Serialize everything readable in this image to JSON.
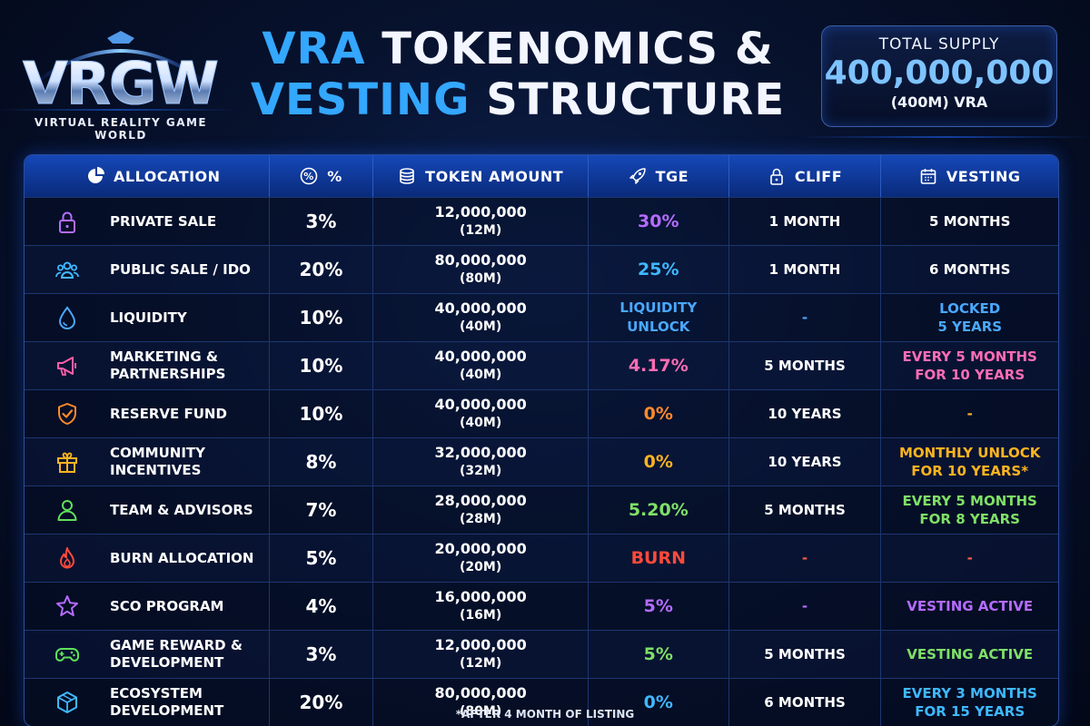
{
  "logo": {
    "mark": "VRGW",
    "tagline": "VIRTUAL REALITY GAME WORLD"
  },
  "title": {
    "line1_accent": "VRA",
    "line1_rest": "TOKENOMICS &",
    "line2_accent": "VESTING",
    "line2_rest": "STRUCTURE"
  },
  "supply": {
    "label": "TOTAL SUPPLY",
    "value": "400,000,000",
    "sub": "(400M) VRA"
  },
  "headers": {
    "allocation": "ALLOCATION",
    "percent": "%",
    "token_amount": "TOKEN AMOUNT",
    "tge": "TGE",
    "cliff": "CLIFF",
    "vesting": "VESTING"
  },
  "rows": [
    {
      "icon": "lock-icon",
      "color": "#b46cff",
      "name": [
        "PRIVATE SALE"
      ],
      "pct": "3%",
      "amount": "12,000,000",
      "amount_short": "(12M)",
      "tge": [
        "30%"
      ],
      "tge_color": "#b46cff",
      "cliff": "1 MONTH",
      "cliff_color": "#ffffff",
      "vesting": [
        "5 MONTHS"
      ],
      "vesting_color": "#ffffff"
    },
    {
      "icon": "users-icon",
      "color": "#3fb8ff",
      "name": [
        "PUBLIC SALE / IDO"
      ],
      "pct": "20%",
      "amount": "80,000,000",
      "amount_short": "(80M)",
      "tge": [
        "25%"
      ],
      "tge_color": "#3fb8ff",
      "cliff": "1 MONTH",
      "cliff_color": "#ffffff",
      "vesting": [
        "6 MONTHS"
      ],
      "vesting_color": "#ffffff"
    },
    {
      "icon": "droplet-icon",
      "color": "#4aa8ff",
      "name": [
        "LIQUIDITY"
      ],
      "pct": "10%",
      "amount": "40,000,000",
      "amount_short": "(40M)",
      "tge": [
        "LIQUIDITY",
        "UNLOCK"
      ],
      "tge_color": "#4aa8ff",
      "cliff": "-",
      "cliff_color": "#4aa8ff",
      "vesting": [
        "LOCKED",
        "5 YEARS"
      ],
      "vesting_color": "#4aa8ff"
    },
    {
      "icon": "megaphone-icon",
      "color": "#ff5fa8",
      "name": [
        "MARKETING &",
        "PARTNERSHIPS"
      ],
      "pct": "10%",
      "amount": "40,000,000",
      "amount_short": "(40M)",
      "tge": [
        "4.17%"
      ],
      "tge_color": "#ff6db5",
      "cliff": "5 MONTHS",
      "cliff_color": "#ffffff",
      "vesting": [
        "EVERY 5 MONTHS",
        "FOR 10 YEARS"
      ],
      "vesting_color": "#ff6db5"
    },
    {
      "icon": "shield-check-icon",
      "color": "#ff8a2a",
      "name": [
        "RESERVE FUND"
      ],
      "pct": "10%",
      "amount": "40,000,000",
      "amount_short": "(40M)",
      "tge": [
        "0%"
      ],
      "tge_color": "#ff8a2a",
      "cliff": "10 YEARS",
      "cliff_color": "#ffffff",
      "vesting": [
        "-"
      ],
      "vesting_color": "#ffb12a"
    },
    {
      "icon": "gift-icon",
      "color": "#ffb41f",
      "name": [
        "COMMUNITY",
        "INCENTIVES"
      ],
      "pct": "8%",
      "amount": "32,000,000",
      "amount_short": "(32M)",
      "tge": [
        "0%"
      ],
      "tge_color": "#ffb41f",
      "cliff": "10 YEARS",
      "cliff_color": "#ffffff",
      "vesting": [
        "MONTHLY UNLOCK",
        "FOR 10 YEARS*"
      ],
      "vesting_color": "#ffb41f"
    },
    {
      "icon": "person-icon",
      "color": "#5fe05a",
      "name": [
        "TEAM & ADVISORS"
      ],
      "pct": "7%",
      "amount": "28,000,000",
      "amount_short": "(28M)",
      "tge": [
        "5.20%"
      ],
      "tge_color": "#7fe066",
      "cliff": "5 MONTHS",
      "cliff_color": "#ffffff",
      "vesting": [
        "EVERY 5 MONTHS",
        "FOR 8 YEARS"
      ],
      "vesting_color": "#7fe066"
    },
    {
      "icon": "flame-icon",
      "color": "#ff4a3a",
      "name": [
        "BURN ALLOCATION"
      ],
      "pct": "5%",
      "amount": "20,000,000",
      "amount_short": "(20M)",
      "tge": [
        "BURN"
      ],
      "tge_color": "#ff4a3a",
      "cliff": "-",
      "cliff_color": "#ff5a4a",
      "vesting": [
        "-"
      ],
      "vesting_color": "#ff5a4a"
    },
    {
      "icon": "star-icon",
      "color": "#b46cff",
      "name": [
        "SCO PROGRAM"
      ],
      "pct": "4%",
      "amount": "16,000,000",
      "amount_short": "(16M)",
      "tge": [
        "5%"
      ],
      "tge_color": "#b46cff",
      "cliff": "-",
      "cliff_color": "#b46cff",
      "vesting": [
        "VESTING ACTIVE"
      ],
      "vesting_color": "#b46cff"
    },
    {
      "icon": "gamepad-icon",
      "color": "#5fe05a",
      "name": [
        "GAME REWARD &",
        "DEVELOPMENT"
      ],
      "pct": "3%",
      "amount": "12,000,000",
      "amount_short": "(12M)",
      "tge": [
        "5%"
      ],
      "tge_color": "#7fe066",
      "cliff": "5 MONTHS",
      "cliff_color": "#ffffff",
      "vesting": [
        "VESTING ACTIVE"
      ],
      "vesting_color": "#7fe066"
    },
    {
      "icon": "cube-icon",
      "color": "#3fb8ff",
      "name": [
        "ECOSYSTEM DEVELOPMENT"
      ],
      "pct": "20%",
      "amount": "80,000,000",
      "amount_short": "(80M)",
      "tge": [
        "0%"
      ],
      "tge_color": "#3fb8ff",
      "cliff": "6 MONTHS",
      "cliff_color": "#ffffff",
      "vesting": [
        "EVERY 3 MONTHS",
        "FOR 15 YEARS"
      ],
      "vesting_color": "#3fb8ff"
    }
  ],
  "footnote": "*AFTER 4 MONTH OF LISTING"
}
